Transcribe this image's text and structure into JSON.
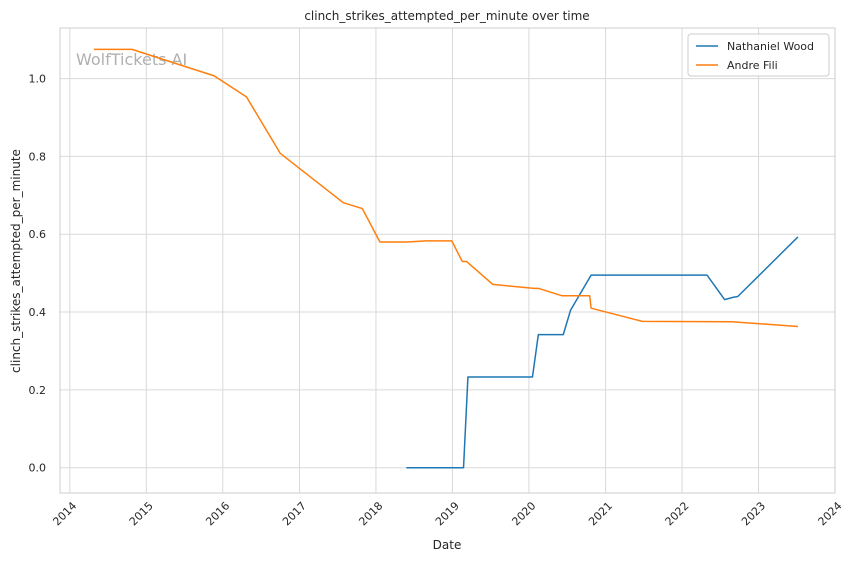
{
  "chart_data": {
    "type": "line",
    "title": "clinch_strikes_attempted_per_minute over time",
    "xlabel": "Date",
    "ylabel": "clinch_strikes_attempted_per_minute",
    "watermark": "WolfTickets AI",
    "xlim": [
      "2013-11-15",
      "2024-01-01"
    ],
    "ylim": [
      -0.065,
      1.13
    ],
    "x_ticks": [
      "2014",
      "2015",
      "2016",
      "2017",
      "2018",
      "2019",
      "2020",
      "2021",
      "2022",
      "2023",
      "2024"
    ],
    "y_ticks": [
      "0.0",
      "0.2",
      "0.4",
      "0.6",
      "0.8",
      "1.0"
    ],
    "y_tick_values": [
      0.0,
      0.2,
      0.4,
      0.6,
      0.8,
      1.0
    ],
    "grid": true,
    "legend_position": "top-right",
    "series": [
      {
        "name": "Nathaniel Wood",
        "color": "#1f77b4",
        "points": [
          [
            "2018-05-26",
            0.0
          ],
          [
            "2019-02-23",
            0.0
          ],
          [
            "2019-03-16",
            0.233
          ],
          [
            "2020-01-18",
            0.233
          ],
          [
            "2020-02-15",
            0.342
          ],
          [
            "2020-06-13",
            0.342
          ],
          [
            "2020-07-18",
            0.405
          ],
          [
            "2020-10-24",
            0.495
          ],
          [
            "2022-04-30",
            0.495
          ],
          [
            "2022-07-23",
            0.432
          ],
          [
            "2022-09-03",
            0.438
          ],
          [
            "2022-09-24",
            0.44
          ],
          [
            "2023-07-08",
            0.593
          ]
        ]
      },
      {
        "name": "Andre Fili",
        "color": "#ff7f0e",
        "points": [
          [
            "2014-04-26",
            1.075
          ],
          [
            "2014-10-25",
            1.075
          ],
          [
            "2015-11-21",
            1.007
          ],
          [
            "2016-04-23",
            0.953
          ],
          [
            "2016-10-01",
            0.808
          ],
          [
            "2017-07-29",
            0.681
          ],
          [
            "2017-10-28",
            0.666
          ],
          [
            "2018-01-20",
            0.58
          ],
          [
            "2018-06-01",
            0.58
          ],
          [
            "2018-08-25",
            0.583
          ],
          [
            "2018-12-29",
            0.583
          ],
          [
            "2019-02-17",
            0.53
          ],
          [
            "2019-03-09",
            0.53
          ],
          [
            "2019-07-13",
            0.471
          ],
          [
            "2020-01-25",
            0.461
          ],
          [
            "2020-02-15",
            0.461
          ],
          [
            "2020-06-06",
            0.442
          ],
          [
            "2020-10-17",
            0.442
          ],
          [
            "2020-10-24",
            0.41
          ],
          [
            "2021-06-26",
            0.376
          ],
          [
            "2022-08-27",
            0.375
          ],
          [
            "2023-07-08",
            0.363
          ]
        ]
      }
    ]
  }
}
